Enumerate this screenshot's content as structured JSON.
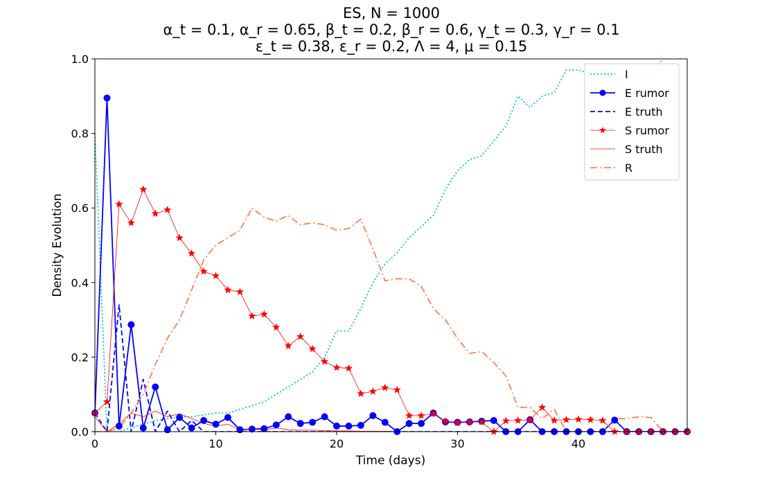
{
  "chart_data": {
    "type": "line",
    "title_lines": [
      "ES, N = 1000",
      "α_t = 0.1, α_r = 0.65, β_t = 0.2, β_r = 0.6, γ_t = 0.3, γ_r = 0.1",
      "ε_t = 0.38, ε_r = 0.2, Λ = 4, μ = 0.15"
    ],
    "xlabel": "Time (days)",
    "ylabel": "Density Evolution",
    "xlim": [
      0,
      49
    ],
    "ylim": [
      0,
      1
    ],
    "xticks": [
      0,
      10,
      20,
      30,
      40
    ],
    "yticks": [
      0.0,
      0.2,
      0.4,
      0.6,
      0.8,
      1.0
    ],
    "grid": false,
    "legend_position": "top-right",
    "x": [
      0,
      1,
      2,
      3,
      4,
      5,
      6,
      7,
      8,
      9,
      10,
      11,
      12,
      13,
      14,
      15,
      16,
      17,
      18,
      19,
      20,
      21,
      22,
      23,
      24,
      25,
      26,
      27,
      28,
      29,
      30,
      31,
      32,
      33,
      34,
      35,
      36,
      37,
      38,
      39,
      40,
      41,
      42,
      43,
      44,
      45,
      46,
      47,
      48,
      49
    ],
    "series": [
      {
        "name": "I",
        "color": "#00bfd8",
        "style": "dotted",
        "marker": "none",
        "values": [
          0.8,
          0.0,
          0.0,
          0.01,
          0.02,
          0.03,
          0.035,
          0.04,
          0.04,
          0.045,
          0.05,
          0.05,
          0.06,
          0.07,
          0.08,
          0.1,
          0.12,
          0.14,
          0.16,
          0.2,
          0.27,
          0.27,
          0.33,
          0.4,
          0.45,
          0.48,
          0.52,
          0.55,
          0.58,
          0.65,
          0.7,
          0.73,
          0.74,
          0.78,
          0.82,
          0.9,
          0.87,
          0.9,
          0.91,
          0.97,
          0.97,
          0.96,
          0.97,
          0.94,
          0.95,
          0.96,
          0.96,
          1.0,
          1.01,
          1.02
        ]
      },
      {
        "name": "E rumor",
        "color": "#0000ff",
        "style": "solid",
        "marker": "circle",
        "values": [
          0.05,
          0.895,
          0.015,
          0.287,
          0.01,
          0.12,
          0.005,
          0.038,
          0.01,
          0.03,
          0.02,
          0.038,
          0.005,
          0.007,
          0.008,
          0.018,
          0.04,
          0.022,
          0.025,
          0.04,
          0.015,
          0.015,
          0.017,
          0.043,
          0.025,
          0.0,
          0.022,
          0.022,
          0.05,
          0.026,
          0.025,
          0.026,
          0.028,
          0.03,
          0.0,
          0.0,
          0.032,
          0.0,
          0.0,
          0.0,
          0.0,
          0.0,
          0.0,
          0.031,
          0.0,
          0.0,
          0.0,
          0.0,
          0.0,
          0.0
        ]
      },
      {
        "name": "E truth",
        "color": "#0000ff",
        "style": "dashed",
        "marker": "none",
        "values": [
          0.05,
          0.0,
          0.34,
          0.0,
          0.14,
          0.0,
          0.055,
          0.0,
          0.03,
          0.0,
          0.0,
          0.0,
          0.0,
          0.0,
          0.0,
          0.0,
          0.0,
          0.0,
          0.0,
          0.0,
          0.0,
          0.0,
          0.0,
          0.0,
          0.0,
          0.0,
          0.0,
          0.0,
          0.0,
          0.0,
          0.0,
          0.0,
          0.0,
          0.0,
          0.0,
          0.0,
          0.0,
          0.0,
          0.0,
          0.0,
          0.0,
          0.0,
          0.0,
          0.0,
          0.0,
          0.0,
          0.0,
          0.0,
          0.0,
          0.0
        ]
      },
      {
        "name": "S rumor",
        "color": "#ff0000",
        "style": "solid-thin",
        "marker": "star",
        "values": [
          0.05,
          0.08,
          0.61,
          0.56,
          0.65,
          0.585,
          0.595,
          0.52,
          0.478,
          0.43,
          0.418,
          0.38,
          0.375,
          0.31,
          0.315,
          0.28,
          0.23,
          0.255,
          0.222,
          0.188,
          0.172,
          0.17,
          0.102,
          0.108,
          0.118,
          0.112,
          0.043,
          0.043,
          0.048,
          0.028,
          0.024,
          0.026,
          0.026,
          0.0,
          0.029,
          0.03,
          0.032,
          0.065,
          0.03,
          0.032,
          0.033,
          0.032,
          0.03,
          0.0,
          0.0,
          0.0,
          0.0,
          0.0,
          0.0,
          0.0
        ]
      },
      {
        "name": "S truth",
        "color": "#ff0000",
        "style": "solid-thin",
        "marker": "none",
        "values": [
          0.04,
          0.0,
          0.02,
          0.05,
          0.04,
          0.055,
          0.04,
          0.048,
          0.035,
          0.022,
          0.015,
          0.02,
          0.005,
          0.007,
          0.005,
          0.01,
          0.005,
          0.004,
          0.004,
          0.003,
          0.002,
          0.002,
          0.001,
          0.001,
          0.001,
          0.0,
          0.0,
          0.0,
          0.0,
          0.0,
          0.0,
          0.0,
          0.0,
          0.0,
          0.0,
          0.0,
          0.0,
          0.0,
          0.0,
          0.0,
          0.0,
          0.0,
          0.0,
          0.0,
          0.0,
          0.0,
          0.0,
          0.0,
          0.0,
          0.0
        ]
      },
      {
        "name": "R",
        "color": "#ff7f50",
        "style": "dashdot",
        "marker": "none",
        "values": [
          0.0,
          0.0,
          0.01,
          0.05,
          0.1,
          0.18,
          0.25,
          0.3,
          0.38,
          0.46,
          0.5,
          0.52,
          0.54,
          0.6,
          0.575,
          0.565,
          0.58,
          0.555,
          0.56,
          0.555,
          0.54,
          0.545,
          0.57,
          0.49,
          0.405,
          0.41,
          0.41,
          0.39,
          0.33,
          0.3,
          0.25,
          0.21,
          0.215,
          0.185,
          0.15,
          0.065,
          0.065,
          0.035,
          0.06,
          0.0,
          0.0,
          0.0,
          0.0,
          0.035,
          0.035,
          0.04,
          0.038,
          0.0,
          0.0,
          0.0
        ]
      }
    ]
  }
}
